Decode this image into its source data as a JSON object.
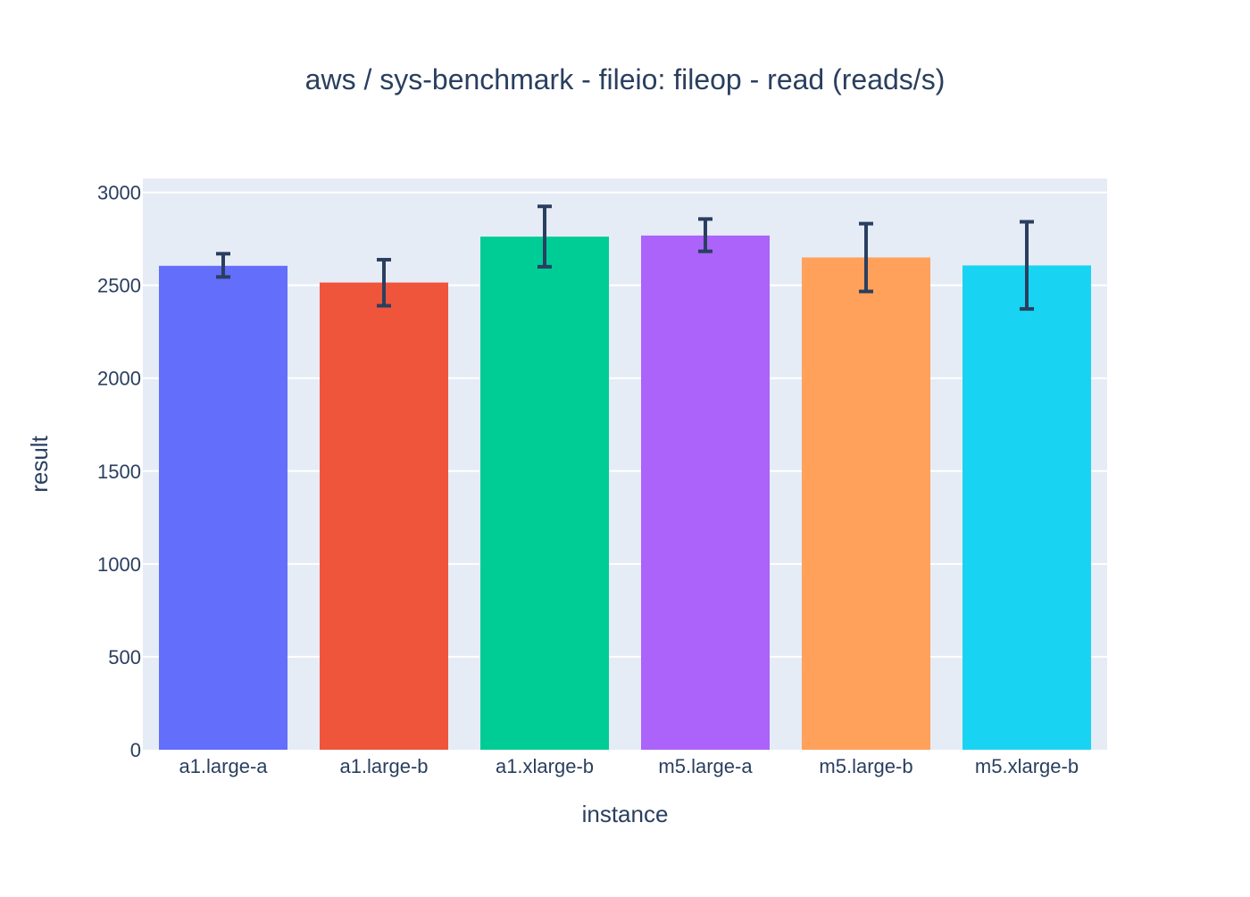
{
  "chart_data": {
    "type": "bar",
    "title": "aws / sys-benchmark - fileio: fileop - read (reads/s)",
    "xlabel": "instance",
    "ylabel": "result",
    "categories": [
      "a1.large-a",
      "a1.large-b",
      "a1.xlarge-b",
      "m5.large-a",
      "m5.large-b",
      "m5.xlarge-b"
    ],
    "values": [
      2605,
      2515,
      2762,
      2768,
      2650,
      2607
    ],
    "error_low": [
      2545,
      2390,
      2600,
      2683,
      2467,
      2373
    ],
    "error_high": [
      2670,
      2638,
      2925,
      2857,
      2832,
      2842
    ],
    "colors": [
      "#636efa",
      "#ef553b",
      "#00cc96",
      "#ab63fa",
      "#ffa15a",
      "#19d3f3"
    ],
    "ylim": [
      0,
      3075
    ],
    "yticks": [
      0,
      500,
      1000,
      1500,
      2000,
      2500,
      3000
    ],
    "ytick_labels": [
      "0",
      "500",
      "1000",
      "1500",
      "2000",
      "2500",
      "3000"
    ],
    "grid": true,
    "legend": "none",
    "plot_background": "#e5ecf6",
    "error_bar_color": "#2a3f5f"
  }
}
